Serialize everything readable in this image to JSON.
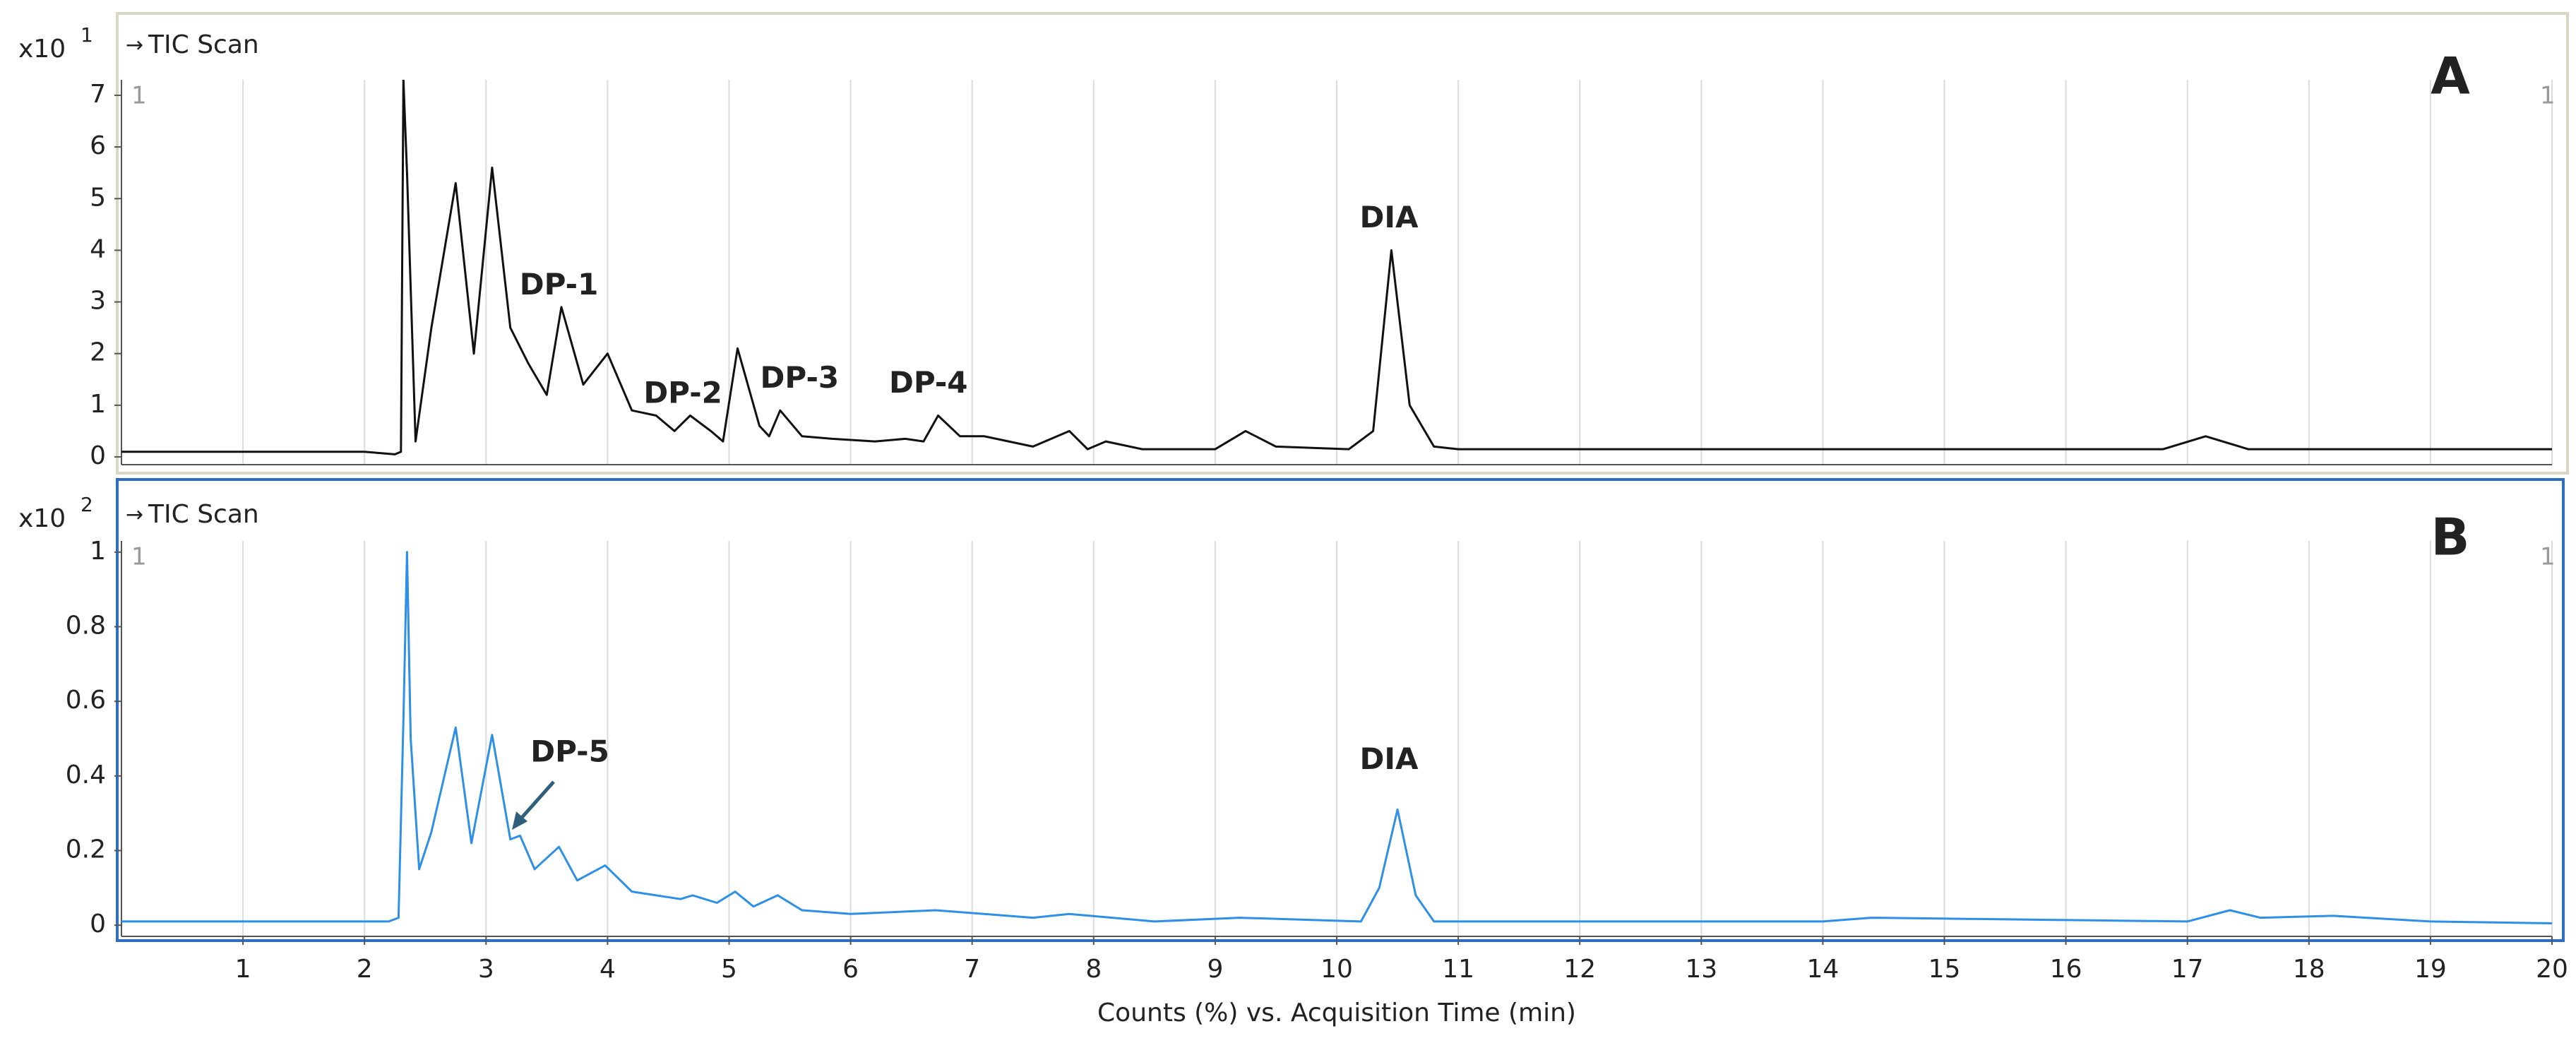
{
  "chart_data": [
    {
      "type": "line",
      "panel_label": "A",
      "y_multiplier": "x10",
      "y_exponent": "1",
      "corner_labels": [
        "1",
        "1"
      ],
      "frame_color": "#d9d6c6",
      "grid": "x",
      "x": [
        0,
        1,
        2,
        2.25,
        2.3,
        2.32,
        2.35,
        2.42,
        2.55,
        2.75,
        2.9,
        3.05,
        3.2,
        3.35,
        3.5,
        3.62,
        3.8,
        4.0,
        4.2,
        4.4,
        4.55,
        4.68,
        4.85,
        4.95,
        5.07,
        5.25,
        5.33,
        5.42,
        5.6,
        5.85,
        6.2,
        6.45,
        6.6,
        6.72,
        6.9,
        7.1,
        7.5,
        7.8,
        7.95,
        8.1,
        8.4,
        9.0,
        9.25,
        9.5,
        10.1,
        10.3,
        10.45,
        10.6,
        10.8,
        11,
        14,
        16.8,
        17.15,
        17.5,
        20
      ],
      "series": [
        {
          "name": "TIC Scan",
          "color": "#111111",
          "values": [
            0.1,
            0.1,
            0.1,
            0.05,
            0.1,
            7.3,
            5.5,
            0.3,
            2.5,
            5.3,
            2.0,
            5.6,
            2.5,
            1.8,
            1.2,
            2.9,
            1.4,
            2.0,
            0.9,
            0.8,
            0.5,
            0.8,
            0.5,
            0.3,
            2.1,
            0.6,
            0.4,
            0.9,
            0.4,
            0.35,
            0.3,
            0.35,
            0.3,
            0.8,
            0.4,
            0.4,
            0.2,
            0.5,
            0.15,
            0.3,
            0.15,
            0.15,
            0.5,
            0.2,
            0.15,
            0.5,
            4.0,
            1.0,
            0.2,
            0.15,
            0.15,
            0.15,
            0.4,
            0.15,
            0.15
          ]
        }
      ],
      "xlim": [
        0,
        20
      ],
      "xticks": [
        1,
        2,
        3,
        4,
        5,
        6,
        7,
        8,
        9,
        10,
        11,
        12,
        13,
        14,
        15,
        16,
        17,
        18,
        19,
        20
      ],
      "ylim": [
        -0.15,
        7.3
      ],
      "yticks": [
        0,
        1,
        2,
        3,
        4,
        5,
        6,
        7
      ],
      "annotations": [
        {
          "text": "DP-1",
          "x": 3.6,
          "y": 3.3
        },
        {
          "text": "DP-2",
          "x": 4.62,
          "y": 1.2
        },
        {
          "text": "DP-3",
          "x": 5.58,
          "y": 1.5
        },
        {
          "text": "DP-4",
          "x": 6.64,
          "y": 1.4
        },
        {
          "text": "DIA",
          "x": 10.43,
          "y": 4.6
        }
      ]
    },
    {
      "type": "line",
      "panel_label": "B",
      "y_multiplier": "x10",
      "y_exponent": "2",
      "corner_labels": [
        "1",
        "1"
      ],
      "frame_color": "#2e6dbf",
      "grid": "x",
      "x": [
        0,
        2.2,
        2.28,
        2.32,
        2.35,
        2.38,
        2.45,
        2.55,
        2.75,
        2.88,
        3.05,
        3.2,
        3.28,
        3.4,
        3.6,
        3.75,
        3.98,
        4.2,
        4.6,
        4.7,
        4.9,
        5.05,
        5.2,
        5.4,
        5.6,
        6,
        6.7,
        7.5,
        7.8,
        8.5,
        9.2,
        10.2,
        10.35,
        10.5,
        10.65,
        10.8,
        14,
        14.4,
        17,
        17.35,
        17.6,
        18.2,
        19,
        20
      ],
      "series": [
        {
          "name": "TIC Scan",
          "color": "#2e8fe6",
          "values": [
            0.01,
            0.01,
            0.02,
            0.55,
            1.0,
            0.5,
            0.15,
            0.25,
            0.53,
            0.22,
            0.51,
            0.23,
            0.24,
            0.15,
            0.21,
            0.12,
            0.16,
            0.09,
            0.07,
            0.08,
            0.06,
            0.09,
            0.05,
            0.08,
            0.04,
            0.03,
            0.04,
            0.02,
            0.03,
            0.01,
            0.02,
            0.01,
            0.1,
            0.31,
            0.08,
            0.01,
            0.01,
            0.02,
            0.01,
            0.04,
            0.02,
            0.025,
            0.01,
            0.005
          ]
        }
      ],
      "xlim": [
        0,
        20
      ],
      "xticks": [
        1,
        2,
        3,
        4,
        5,
        6,
        7,
        8,
        9,
        10,
        11,
        12,
        13,
        14,
        15,
        16,
        17,
        18,
        19,
        20
      ],
      "x_label": "Counts (%) vs. Acquisition Time (min)",
      "ylim": [
        -0.03,
        1.03
      ],
      "yticks": [
        0,
        0.2,
        0.4,
        0.6,
        0.8,
        1
      ],
      "annotations": [
        {
          "text": "DP-5",
          "x": 3.69,
          "y": 0.46,
          "arrow": true
        },
        {
          "text": "DIA",
          "x": 10.43,
          "y": 0.44
        }
      ]
    }
  ]
}
